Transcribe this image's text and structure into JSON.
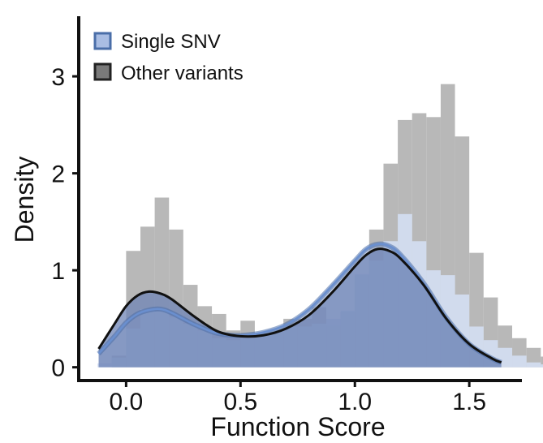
{
  "chart_data": {
    "type": "histogram-density",
    "xlabel": "Function Score",
    "ylabel": "Density",
    "xlim": [
      -0.2,
      1.73
    ],
    "ylim": [
      -0.12,
      3.62
    ],
    "x_ticks": [
      0.0,
      0.5,
      1.0,
      1.5
    ],
    "x_tick_labels": [
      "0.0",
      "0.5",
      "1.0",
      "1.5"
    ],
    "y_ticks": [
      0,
      1,
      2,
      3
    ],
    "y_tick_labels": [
      "0",
      "1",
      "2",
      "3"
    ],
    "grid": false,
    "legend_position": "top-left",
    "legend": [
      {
        "label": "Single SNV",
        "color": "#a9bde3",
        "edge": "#4a6ea8"
      },
      {
        "label": "Other variants",
        "color": "#7a7a7a",
        "edge": "#222222"
      }
    ],
    "bin_width": 0.0625,
    "bin_start": -0.125,
    "series": [
      {
        "name": "Other variants",
        "role": "histogram",
        "color": "#b8b8b8",
        "values": [
          0.0,
          0.12,
          1.2,
          1.45,
          1.75,
          1.42,
          0.85,
          0.63,
          0.55,
          0.38,
          0.48,
          0.33,
          0.38,
          0.5,
          0.5,
          0.62,
          0.43,
          0.57,
          0.95,
          1.42,
          2.1,
          2.55,
          2.62,
          2.58,
          2.92,
          2.38,
          1.18,
          0.72,
          0.43,
          0.3,
          0.2,
          0.11
        ]
      },
      {
        "name": "Single SNV",
        "role": "histogram",
        "color": "#d4dff3",
        "values": [
          0.04,
          0.1,
          0.4,
          0.6,
          0.58,
          0.52,
          0.45,
          0.38,
          0.3,
          0.28,
          0.3,
          0.35,
          0.38,
          0.42,
          0.42,
          0.45,
          0.5,
          0.58,
          0.96,
          1.1,
          1.3,
          1.58,
          1.3,
          1.0,
          0.95,
          0.75,
          0.42,
          0.28,
          0.2,
          0.12,
          0.05,
          0.03
        ]
      },
      {
        "name": "Other variants",
        "role": "density",
        "color": "#111111",
        "x": [
          -0.12,
          -0.05,
          0.0,
          0.05,
          0.1,
          0.15,
          0.2,
          0.3,
          0.4,
          0.5,
          0.6,
          0.7,
          0.8,
          0.9,
          1.0,
          1.05,
          1.1,
          1.15,
          1.2,
          1.3,
          1.4,
          1.5,
          1.6,
          1.64
        ],
        "y": [
          0.19,
          0.45,
          0.63,
          0.74,
          0.78,
          0.76,
          0.7,
          0.52,
          0.37,
          0.32,
          0.33,
          0.4,
          0.54,
          0.77,
          1.04,
          1.16,
          1.22,
          1.2,
          1.12,
          0.85,
          0.5,
          0.24,
          0.09,
          0.05
        ]
      },
      {
        "name": "Single SNV",
        "role": "density",
        "color": "#6a8fcf",
        "x": [
          -0.12,
          -0.05,
          0.0,
          0.05,
          0.1,
          0.15,
          0.2,
          0.3,
          0.4,
          0.5,
          0.6,
          0.7,
          0.8,
          0.9,
          1.0,
          1.05,
          1.1,
          1.15,
          1.2,
          1.3,
          1.4,
          1.5,
          1.6,
          1.64
        ],
        "y": [
          0.14,
          0.32,
          0.46,
          0.55,
          0.59,
          0.6,
          0.56,
          0.44,
          0.35,
          0.33,
          0.36,
          0.44,
          0.6,
          0.84,
          1.1,
          1.22,
          1.27,
          1.25,
          1.16,
          0.87,
          0.51,
          0.24,
          0.09,
          0.05
        ]
      }
    ]
  }
}
